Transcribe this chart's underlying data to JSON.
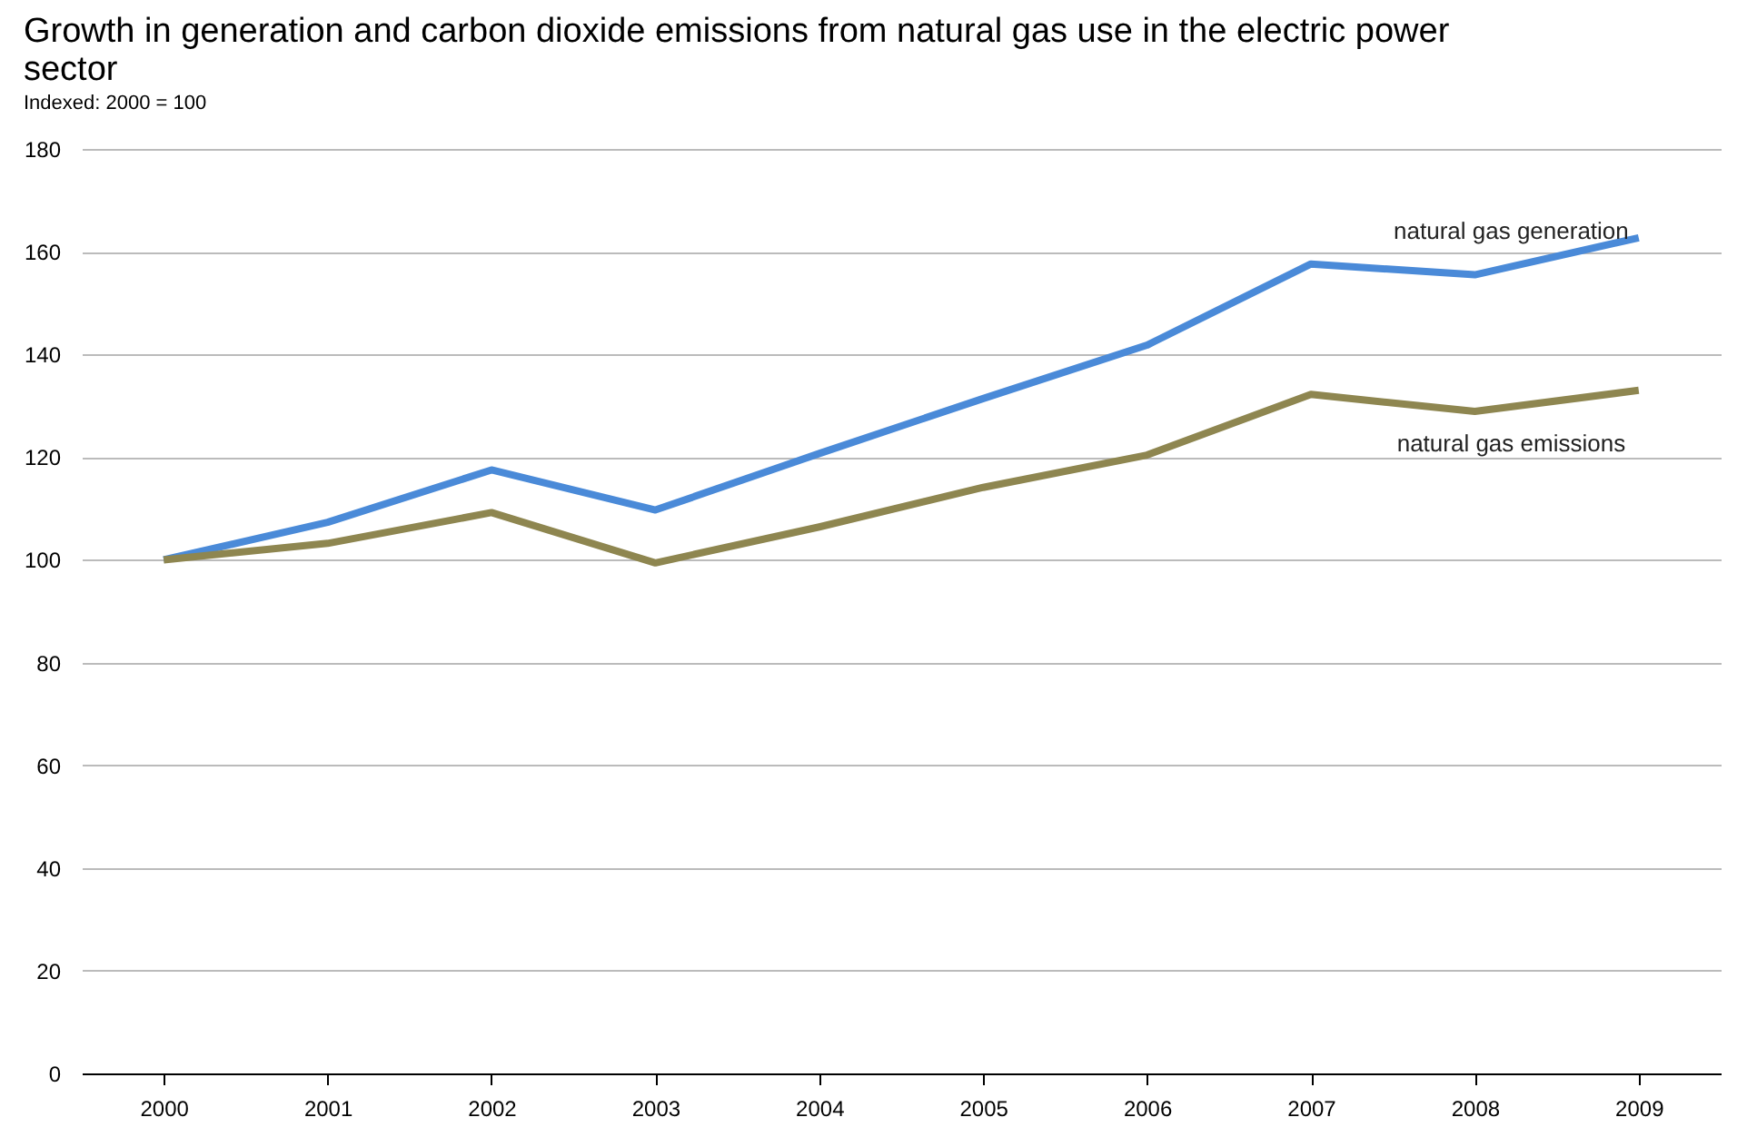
{
  "chart_data": {
    "type": "line",
    "title": "Growth in generation and carbon dioxide emissions from natural gas use in the electric power sector",
    "subtitle": "Indexed:  2000 = 100",
    "categories": [
      "2000",
      "2001",
      "2002",
      "2003",
      "2004",
      "2005",
      "2006",
      "2007",
      "2008",
      "2009"
    ],
    "series": [
      {
        "name": "natural gas generation",
        "color": "#4a8ad8",
        "values": [
          100,
          107.3,
          117.5,
          109.7,
          120.7,
          131.4,
          141.8,
          157.6,
          155.5,
          162.7
        ]
      },
      {
        "name": "natural gas emissions",
        "color": "#8e8650",
        "values": [
          100,
          103.2,
          109.2,
          99.4,
          106.4,
          114.1,
          120.4,
          132.2,
          128.9,
          133.0
        ]
      }
    ],
    "ylim": [
      0,
      180
    ],
    "yticks": [
      0,
      20,
      40,
      60,
      80,
      100,
      120,
      140,
      160,
      180
    ],
    "grid": "y",
    "legend": false,
    "marker": "none",
    "line_style": "solid"
  }
}
